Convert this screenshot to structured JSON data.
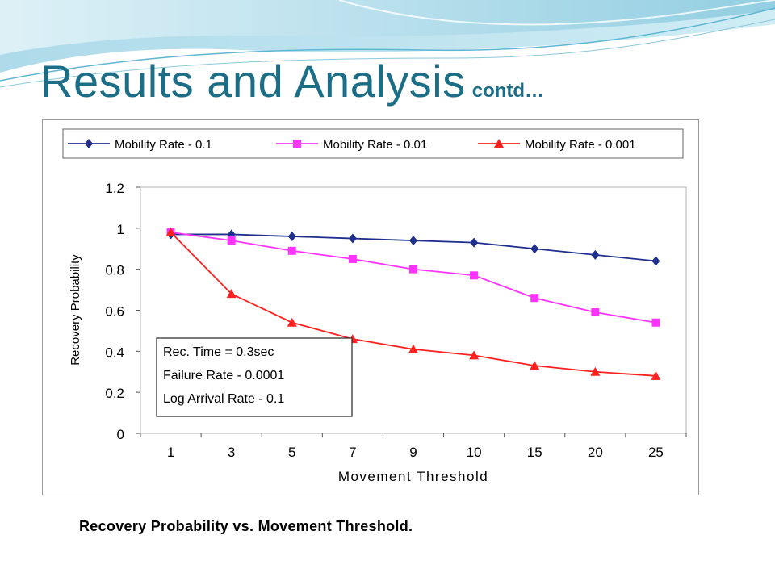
{
  "slide": {
    "title": "Results and Analysis",
    "title_suffix": "contd…",
    "caption": "Recovery Probability vs. Movement Threshold.",
    "title_color": "#1c6e86"
  },
  "chart_data": {
    "type": "line",
    "categories": [
      "1",
      "3",
      "5",
      "7",
      "9",
      "10",
      "15",
      "20",
      "25"
    ],
    "xlabel": "Movement Threshold",
    "ylabel": "Recovery Probability",
    "ylim": [
      0,
      1.2
    ],
    "yticks": [
      "0",
      "0.2",
      "0.4",
      "0.6",
      "0.8",
      "1",
      "1.2"
    ],
    "grid": false,
    "legend_position": "top",
    "series": [
      {
        "name": "Mobility Rate - 0.1",
        "color": "#1f2f8f",
        "marker": "diamond",
        "values": [
          0.97,
          0.97,
          0.96,
          0.95,
          0.94,
          0.93,
          0.9,
          0.87,
          0.84
        ]
      },
      {
        "name": "Mobility Rate - 0.01",
        "color": "#ff33ff",
        "marker": "square",
        "values": [
          0.98,
          0.94,
          0.89,
          0.85,
          0.8,
          0.77,
          0.66,
          0.59,
          0.54
        ]
      },
      {
        "name": "Mobility Rate - 0.001",
        "color": "#ff2020",
        "marker": "triangle",
        "values": [
          0.98,
          0.68,
          0.54,
          0.46,
          0.41,
          0.38,
          0.33,
          0.3,
          0.28
        ]
      }
    ],
    "annotation": [
      "Rec. Time = 0.3sec",
      "Failure Rate - 0.0001",
      "Log Arrival Rate - 0.1"
    ]
  }
}
